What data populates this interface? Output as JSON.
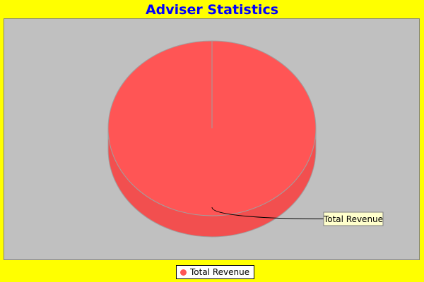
{
  "chart_data": {
    "type": "pie",
    "title": "Adviser Statistics",
    "categories": [
      "Total Revenue"
    ],
    "values": [
      100
    ],
    "labels": [
      "Total Revenue"
    ],
    "legend": {
      "placement": "bottom",
      "items": [
        "Total Revenue"
      ]
    },
    "colors": {
      "background": "#ffff00",
      "plot_background": "#c0c0c0",
      "title": "#0000ff",
      "slices": [
        "#ff5555"
      ],
      "slice_side": "#f24f4f",
      "label_background": "#ffffcc"
    },
    "style": "3d"
  }
}
